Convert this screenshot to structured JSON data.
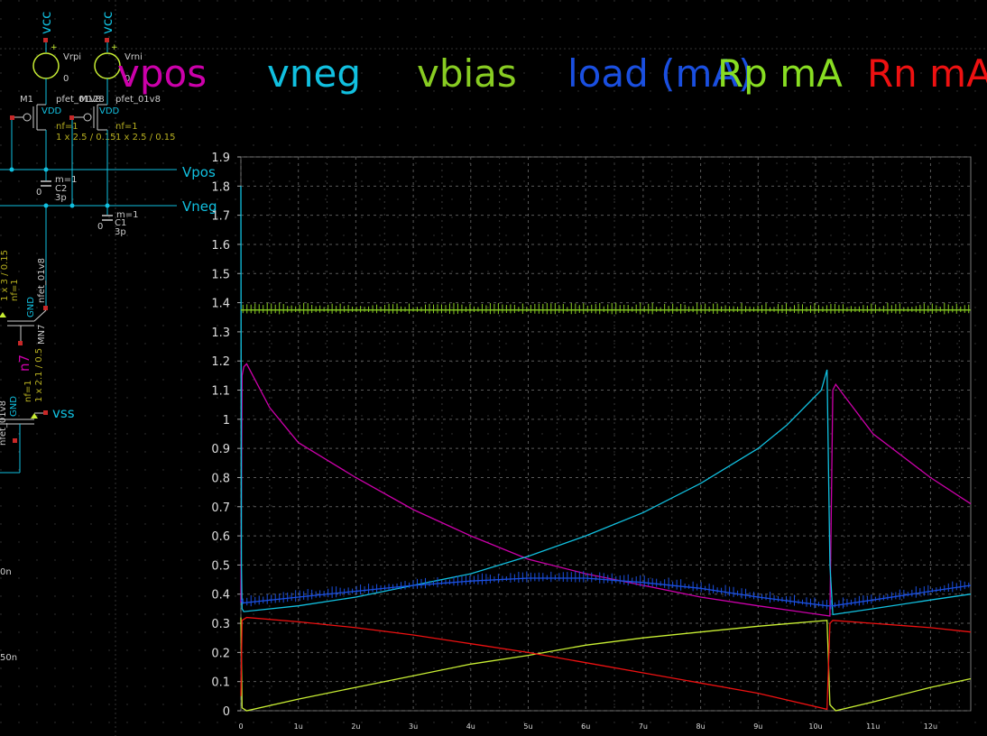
{
  "schematic": {
    "sources": [
      {
        "supply": "vcc",
        "name": "Vrpi",
        "value": "0"
      },
      {
        "supply": "vcc",
        "name": "Vrni",
        "value": "0"
      }
    ],
    "pfets": [
      {
        "inst": "M1",
        "model": "pfet_01v8",
        "bulk": "VDD",
        "nf": "nf=1",
        "wl": "1 x 2.5 / 0.15"
      },
      {
        "inst": "M128",
        "model": "pfet_01v8",
        "bulk": "VDD",
        "nf": "nf=1",
        "wl": "1 x 2.5 / 0.15"
      }
    ],
    "caps": [
      {
        "m": "m=1",
        "name": "C2",
        "value": "3p",
        "gnd": "0"
      },
      {
        "m": "m=1",
        "name": "C1",
        "value": "3p",
        "gnd": "0"
      }
    ],
    "pins": [
      "Vpos",
      "Vneg",
      "vss"
    ],
    "nfet_upper": {
      "model": "nfet_01v8",
      "inst": "MN7",
      "bulk": "GND",
      "nf": "nf=1",
      "wl": "1 x 3 / 0.15"
    },
    "net_label": "n7",
    "nfet_lower": {
      "model": "nfet_01v8",
      "inst": "MB",
      "bulk": "GND",
      "nf": "nf=1",
      "wl": "1 x 2.1 / 0.5"
    },
    "left_texts": [
      "0n",
      "50n"
    ]
  },
  "legend": [
    {
      "label": "vpos",
      "color": "#cc00aa"
    },
    {
      "label": "vneg",
      "color": "#11c0e0"
    },
    {
      "label": "vbias",
      "color": "#88cc22"
    },
    {
      "label": "load (mA)",
      "color": "#1a4fe0"
    },
    {
      "label": "Rp mA",
      "color": "#88dd22"
    },
    {
      "label": "Rn mA",
      "color": "#ee1111"
    }
  ],
  "chart_data": {
    "type": "line",
    "ylim": [
      0,
      1.9
    ],
    "xlim": [
      0,
      12.7
    ],
    "y_ticks": [
      "0",
      "0.1",
      "0.2",
      "0.3",
      "0.4",
      "0.5",
      "0.6",
      "0.7",
      "0.8",
      "0.9",
      "1",
      "1.1",
      "1.2",
      "1.3",
      "1.4",
      "1.5",
      "1.6",
      "1.7",
      "1.8",
      "1.9"
    ],
    "x_ticks": [
      "0",
      "1u",
      "2u",
      "3u",
      "4u",
      "5u",
      "6u",
      "7u",
      "8u",
      "9u",
      "10u",
      "11u",
      "12u"
    ],
    "grid": true,
    "series": [
      {
        "name": "vpos",
        "color": "#cc00aa",
        "x": [
          0,
          0.02,
          0.05,
          0.1,
          0.5,
          1,
          2,
          3,
          4,
          5,
          6,
          7,
          8,
          9,
          10.25,
          10.3,
          10.35,
          10.5,
          11,
          12,
          12.7
        ],
        "y": [
          0.37,
          1.15,
          1.18,
          1.19,
          1.04,
          0.92,
          0.8,
          0.69,
          0.6,
          0.52,
          0.47,
          0.43,
          0.39,
          0.36,
          0.325,
          1.1,
          1.12,
          1.08,
          0.95,
          0.8,
          0.71
        ]
      },
      {
        "name": "vneg",
        "color": "#11c0e0",
        "x": [
          0,
          0.01,
          0.02,
          0.05,
          1,
          2,
          3,
          4,
          5,
          6,
          7,
          8,
          9,
          9.5,
          10.1,
          10.2,
          10.25,
          10.3,
          11,
          12,
          12.7
        ],
        "y": [
          1.8,
          0.5,
          0.35,
          0.34,
          0.36,
          0.39,
          0.43,
          0.47,
          0.53,
          0.6,
          0.68,
          0.78,
          0.9,
          0.98,
          1.1,
          1.17,
          0.5,
          0.33,
          0.35,
          0.38,
          0.4
        ]
      },
      {
        "name": "load (mA)",
        "color": "#1a4fe0",
        "x": [
          0,
          0.05,
          1,
          2,
          3,
          4,
          5,
          6,
          7,
          8,
          9,
          10.2,
          10.3,
          11,
          12,
          12.7
        ],
        "y": [
          0.38,
          0.37,
          0.39,
          0.41,
          0.43,
          0.445,
          0.455,
          0.455,
          0.44,
          0.42,
          0.39,
          0.36,
          0.36,
          0.38,
          0.41,
          0.43
        ]
      },
      {
        "name": "vbias",
        "color": "#88cc22",
        "x": [
          0,
          12.7
        ],
        "y": [
          1.375,
          1.375
        ]
      },
      {
        "name": "Rp mA",
        "color": "#c8ee33",
        "x": [
          0,
          0.02,
          0.1,
          1,
          2,
          3,
          4,
          5,
          6,
          7,
          8,
          9,
          10.2,
          10.25,
          10.35,
          11,
          12,
          12.7
        ],
        "y": [
          0.32,
          0.01,
          0.0,
          0.04,
          0.08,
          0.12,
          0.16,
          0.19,
          0.225,
          0.25,
          0.27,
          0.29,
          0.31,
          0.02,
          0.0,
          0.03,
          0.08,
          0.11
        ]
      },
      {
        "name": "Rn mA",
        "color": "#ee1111",
        "x": [
          0,
          0.02,
          0.1,
          1,
          2,
          3,
          4,
          5,
          6,
          7,
          8,
          9,
          10.2,
          10.25,
          10.3,
          11,
          12,
          12.7
        ],
        "y": [
          0.05,
          0.31,
          0.32,
          0.305,
          0.285,
          0.26,
          0.23,
          0.2,
          0.165,
          0.13,
          0.095,
          0.06,
          0.005,
          0.3,
          0.31,
          0.3,
          0.285,
          0.27
        ]
      }
    ]
  }
}
